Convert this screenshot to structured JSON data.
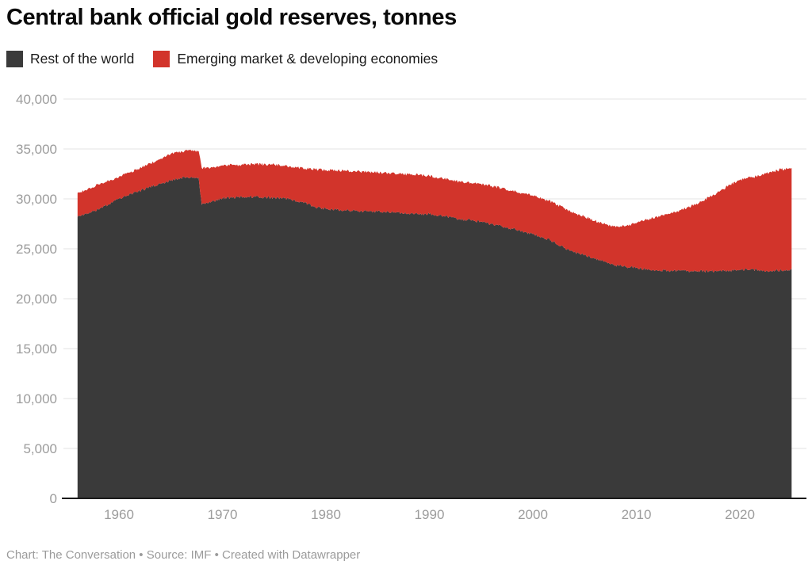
{
  "header": {
    "title": "Central bank official gold reserves, tonnes"
  },
  "legend": {
    "items": [
      {
        "label": "Rest of the world",
        "color": "#3a3a3a"
      },
      {
        "label": "Emerging market & developing economies",
        "color": "#d2342b"
      }
    ]
  },
  "footer": {
    "credit": "Chart: The Conversation • Source: IMF • Created with Datawrapper"
  },
  "chart_data": {
    "type": "area",
    "stacked": true,
    "title": "Central bank official gold reserves, tonnes",
    "xlabel": "",
    "ylabel": "tonnes",
    "grid": "horizontal",
    "legend_position": "top-left",
    "xlim": [
      1955.95,
      2025.1
    ],
    "ylim": [
      0,
      40000
    ],
    "x_ticks": [
      {
        "v": 1960,
        "label": "1960"
      },
      {
        "v": 1970,
        "label": "1970"
      },
      {
        "v": 1980,
        "label": "1980"
      },
      {
        "v": 1990,
        "label": "1990"
      },
      {
        "v": 2000,
        "label": "2000"
      },
      {
        "v": 2010,
        "label": "2010"
      },
      {
        "v": 2020,
        "label": "2020"
      }
    ],
    "y_ticks": [
      {
        "v": 0,
        "label": "0"
      },
      {
        "v": 5000,
        "label": "5,000"
      },
      {
        "v": 10000,
        "label": "10,000"
      },
      {
        "v": 15000,
        "label": "15,000"
      },
      {
        "v": 20000,
        "label": "20,000"
      },
      {
        "v": 25000,
        "label": "25,000"
      },
      {
        "v": 30000,
        "label": "30,000"
      },
      {
        "v": 35000,
        "label": "35,000"
      },
      {
        "v": 40000,
        "label": "40,000"
      }
    ],
    "x": [
      1956,
      1957,
      1958,
      1959,
      1960,
      1961,
      1962,
      1963,
      1964,
      1965,
      1966,
      1967,
      1967.7,
      1968,
      1969,
      1970,
      1971,
      1972,
      1973,
      1974,
      1975,
      1976,
      1977,
      1978,
      1979,
      1980,
      1981,
      1982,
      1983,
      1984,
      1985,
      1986,
      1987,
      1988,
      1989,
      1990,
      1991,
      1992,
      1993,
      1994,
      1995,
      1996,
      1997,
      1998,
      1999,
      2000,
      2001,
      2002,
      2003,
      2004,
      2005,
      2006,
      2007,
      2008,
      2009,
      2010,
      2011,
      2012,
      2013,
      2014,
      2015,
      2016,
      2017,
      2018,
      2019,
      2020,
      2021,
      2022,
      2023,
      2024,
      2025
    ],
    "series": [
      {
        "name": "Rest of the world",
        "color": "#3a3a3a",
        "values": [
          28200,
          28550,
          28950,
          29450,
          30000,
          30450,
          30800,
          31200,
          31500,
          31800,
          32100,
          32200,
          32150,
          29400,
          29750,
          30050,
          30150,
          30150,
          30200,
          30150,
          30100,
          30050,
          29850,
          29600,
          29150,
          29000,
          28900,
          28850,
          28800,
          28770,
          28740,
          28700,
          28650,
          28550,
          28500,
          28480,
          28350,
          28200,
          27950,
          27850,
          27700,
          27500,
          27250,
          27000,
          26750,
          26450,
          26150,
          25700,
          25100,
          24650,
          24400,
          24000,
          23700,
          23350,
          23200,
          23100,
          22950,
          22850,
          22800,
          22800,
          22800,
          22750,
          22750,
          22750,
          22800,
          22900,
          22900,
          22850,
          22800,
          22850,
          22900
        ]
      },
      {
        "name": "Emerging market & developing economies",
        "color": "#d2342b",
        "values": [
          2400,
          2450,
          2500,
          2350,
          2200,
          2200,
          2250,
          2350,
          2500,
          2700,
          2650,
          2600,
          2650,
          3700,
          3400,
          3300,
          3250,
          3250,
          3300,
          3300,
          3350,
          3250,
          3300,
          3450,
          3800,
          3900,
          3950,
          3950,
          3950,
          3930,
          3910,
          3900,
          3850,
          3900,
          3900,
          3820,
          3750,
          3700,
          3750,
          3750,
          3800,
          3800,
          3800,
          3800,
          3800,
          3850,
          3850,
          3900,
          3950,
          3900,
          3850,
          3800,
          3750,
          3800,
          4100,
          4450,
          4950,
          5350,
          5650,
          5950,
          6350,
          6800,
          7400,
          7950,
          8600,
          9000,
          9250,
          9450,
          9900,
          10100,
          10200
        ]
      }
    ]
  }
}
